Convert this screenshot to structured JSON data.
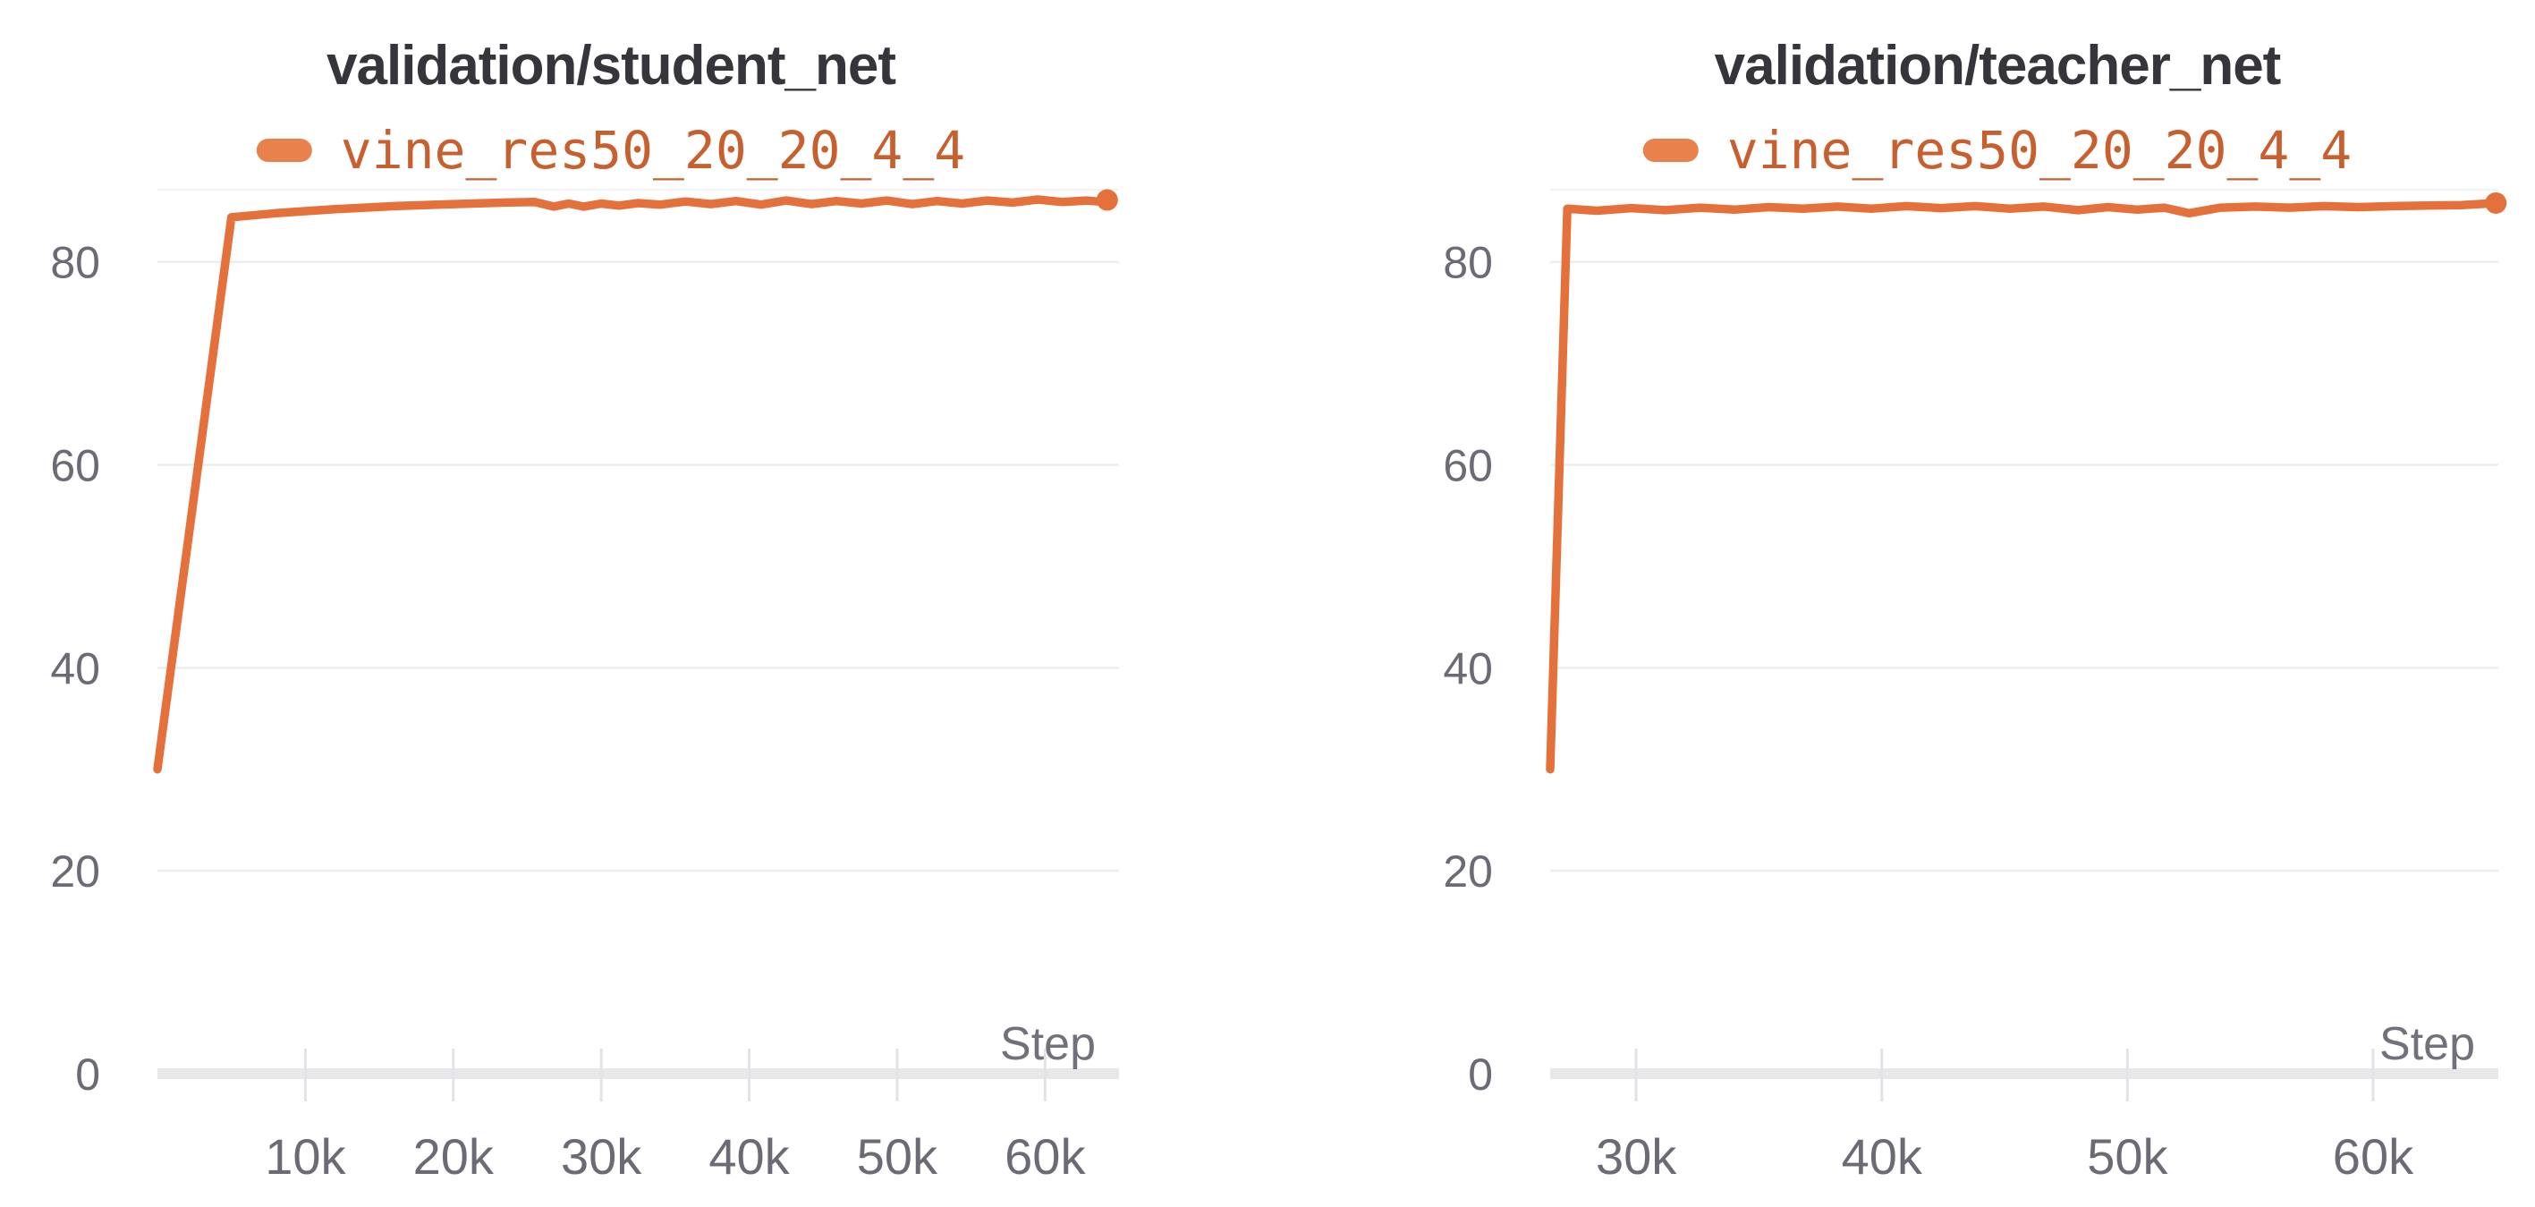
{
  "page": {
    "background": "#ffffff"
  },
  "style": {
    "title_color": "#35353B",
    "tick_label_color": "#6B6B76",
    "axis_label_color": "#71717C",
    "gridline_color": "#EDEDEF",
    "faint_top_line_color": "#F3F3F5",
    "axis_line_color": "#E8E8EB",
    "tick_mark_color": "#E3E3E7",
    "line_color": "#E4703C",
    "legend_text_color": "#C7602E",
    "legend_swatch_color": "#E9814D"
  },
  "chart_data": [
    {
      "type": "line",
      "title": "validation/student_net",
      "xlabel": "Step",
      "ylabel": "",
      "grid": "horizontal",
      "legend_position": "top",
      "xlim": [
        0,
        65000
      ],
      "ylim": [
        0,
        88
      ],
      "xticks": [
        {
          "value": 10000,
          "label": "10k"
        },
        {
          "value": 20000,
          "label": "20k"
        },
        {
          "value": 30000,
          "label": "30k"
        },
        {
          "value": 40000,
          "label": "40k"
        },
        {
          "value": 50000,
          "label": "50k"
        },
        {
          "value": 60000,
          "label": "60k"
        }
      ],
      "yticks": [
        {
          "value": 0,
          "label": "0"
        },
        {
          "value": 20,
          "label": "20"
        },
        {
          "value": 40,
          "label": "40"
        },
        {
          "value": 60,
          "label": "60"
        },
        {
          "value": 80,
          "label": "80"
        }
      ],
      "series": [
        {
          "name": "vine_res50_20_20_4_4",
          "color": "#E4703C",
          "end_marker": true,
          "data": [
            [
              0,
              30.0
            ],
            [
              5000,
              84.4
            ],
            [
              8000,
              84.8
            ],
            [
              12000,
              85.2
            ],
            [
              16000,
              85.5
            ],
            [
              20000,
              85.7
            ],
            [
              23500,
              85.85
            ],
            [
              25500,
              85.9
            ],
            [
              26800,
              85.45
            ],
            [
              27800,
              85.75
            ],
            [
              28800,
              85.45
            ],
            [
              30000,
              85.75
            ],
            [
              31200,
              85.55
            ],
            [
              32500,
              85.8
            ],
            [
              34000,
              85.65
            ],
            [
              35700,
              85.95
            ],
            [
              37400,
              85.7
            ],
            [
              39100,
              86.0
            ],
            [
              40800,
              85.65
            ],
            [
              42500,
              86.05
            ],
            [
              44200,
              85.7
            ],
            [
              45900,
              86.0
            ],
            [
              47600,
              85.75
            ],
            [
              49300,
              86.05
            ],
            [
              51000,
              85.7
            ],
            [
              52700,
              86.0
            ],
            [
              54400,
              85.75
            ],
            [
              56100,
              86.05
            ],
            [
              57800,
              85.85
            ],
            [
              59500,
              86.15
            ],
            [
              61200,
              85.9
            ],
            [
              62800,
              86.05
            ],
            [
              63600,
              85.95
            ],
            [
              64200,
              86.1
            ]
          ]
        }
      ]
    },
    {
      "type": "line",
      "title": "validation/teacher_net",
      "xlabel": "Step",
      "ylabel": "",
      "grid": "horizontal",
      "legend_position": "top",
      "xlim": [
        26500,
        65100
      ],
      "ylim": [
        0,
        88
      ],
      "xticks": [
        {
          "value": 30000,
          "label": "30k"
        },
        {
          "value": 40000,
          "label": "40k"
        },
        {
          "value": 50000,
          "label": "50k"
        },
        {
          "value": 60000,
          "label": "60k"
        }
      ],
      "yticks": [
        {
          "value": 0,
          "label": "0"
        },
        {
          "value": 20,
          "label": "20"
        },
        {
          "value": 40,
          "label": "40"
        },
        {
          "value": 60,
          "label": "60"
        },
        {
          "value": 80,
          "label": "80"
        }
      ],
      "series": [
        {
          "name": "vine_res50_20_20_4_4",
          "color": "#E4703C",
          "end_marker": true,
          "data": [
            [
              26500,
              30.0
            ],
            [
              27200,
              85.25
            ],
            [
              28400,
              85.05
            ],
            [
              29800,
              85.3
            ],
            [
              31200,
              85.1
            ],
            [
              32600,
              85.35
            ],
            [
              34000,
              85.15
            ],
            [
              35400,
              85.4
            ],
            [
              36800,
              85.25
            ],
            [
              38200,
              85.45
            ],
            [
              39600,
              85.25
            ],
            [
              41000,
              85.5
            ],
            [
              42400,
              85.3
            ],
            [
              43800,
              85.5
            ],
            [
              45200,
              85.25
            ],
            [
              46600,
              85.45
            ],
            [
              48000,
              85.1
            ],
            [
              49200,
              85.4
            ],
            [
              50400,
              85.15
            ],
            [
              51500,
              85.35
            ],
            [
              52500,
              84.8
            ],
            [
              53800,
              85.35
            ],
            [
              55200,
              85.45
            ],
            [
              56600,
              85.35
            ],
            [
              58000,
              85.5
            ],
            [
              59400,
              85.4
            ],
            [
              60800,
              85.5
            ],
            [
              62200,
              85.55
            ],
            [
              63600,
              85.6
            ],
            [
              65000,
              85.8
            ]
          ]
        }
      ]
    }
  ]
}
